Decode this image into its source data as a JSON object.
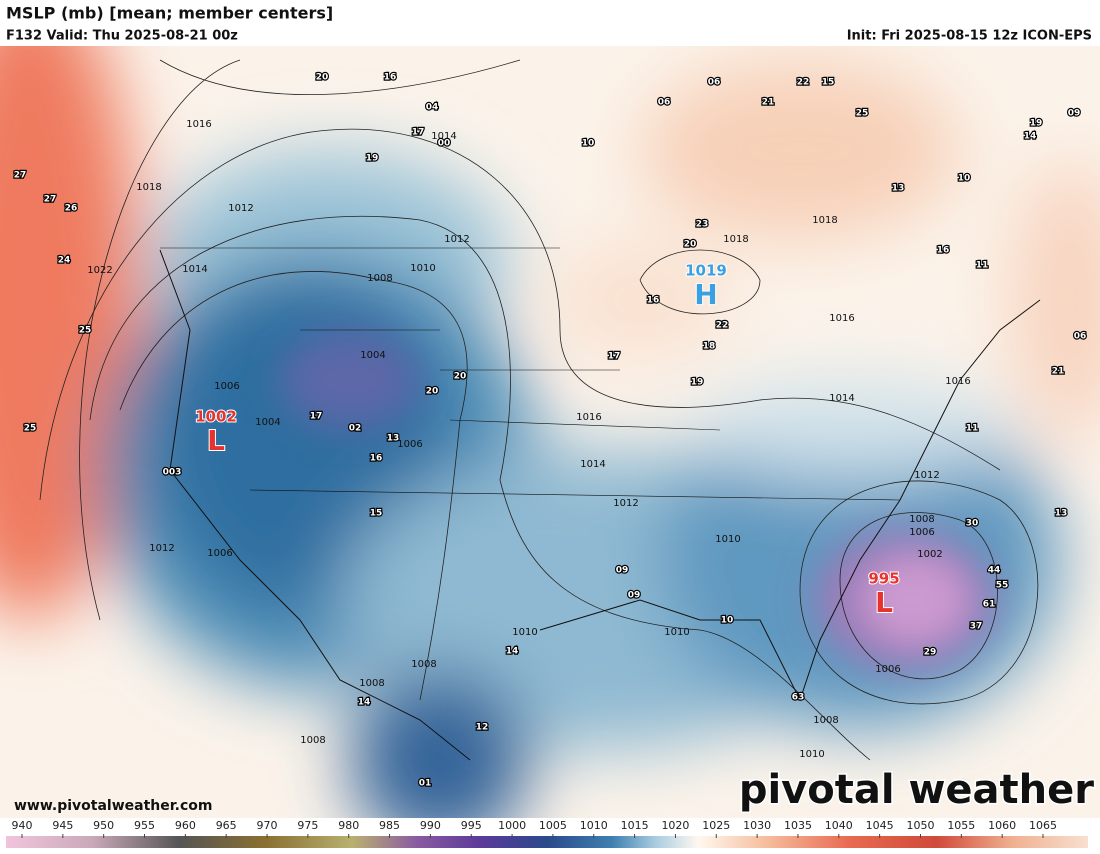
{
  "header": {
    "title": "MSLP (mb) [mean; member centers]",
    "valid": "F132 Valid: Thu 2025-08-21 00z",
    "init": "Init: Fri 2025-08-15 12z ICON-EPS"
  },
  "centers": [
    {
      "value": "1002",
      "letter": "L",
      "kind": "low"
    },
    {
      "value": "1019",
      "letter": "H",
      "kind": "high"
    },
    {
      "value": "995",
      "letter": "L",
      "kind": "low"
    }
  ],
  "isobar_labels": [
    "1016",
    "1018",
    "1012",
    "1014",
    "1022",
    "1008",
    "1010",
    "1012",
    "1014",
    "1018",
    "1018",
    "1016",
    "1016",
    "1014",
    "1012",
    "1014",
    "1012",
    "1010",
    "1010",
    "1010",
    "1008",
    "1006",
    "1002",
    "1006",
    "1008",
    "1010",
    "1006",
    "1004",
    "1004",
    "1006",
    "1012",
    "1006",
    "1008",
    "1008",
    "1008",
    "1016"
  ],
  "member_centers": [
    "20",
    "16",
    "04",
    "17",
    "00",
    "19",
    "06",
    "22",
    "15",
    "21",
    "06",
    "25",
    "10",
    "09",
    "19",
    "14",
    "27",
    "27",
    "26",
    "24",
    "25",
    "25",
    "13",
    "10",
    "23",
    "20",
    "16",
    "22",
    "18",
    "19",
    "17",
    "20",
    "20",
    "17",
    "02",
    "13",
    "16",
    "15",
    "09",
    "09",
    "14",
    "10",
    "30",
    "44",
    "55",
    "61",
    "37",
    "29",
    "63",
    "13",
    "11",
    "21",
    "06",
    "16",
    "11",
    "12",
    "14",
    "01",
    "003"
  ],
  "website": "www.pivotalweather.com",
  "logo": "pivotal weather",
  "colorbar": {
    "ticks": [
      940,
      945,
      950,
      955,
      960,
      965,
      970,
      975,
      980,
      985,
      990,
      995,
      1000,
      1005,
      1010,
      1015,
      1020,
      1025,
      1030,
      1035,
      1040,
      1045,
      1050,
      1055,
      1060,
      1065
    ]
  }
}
